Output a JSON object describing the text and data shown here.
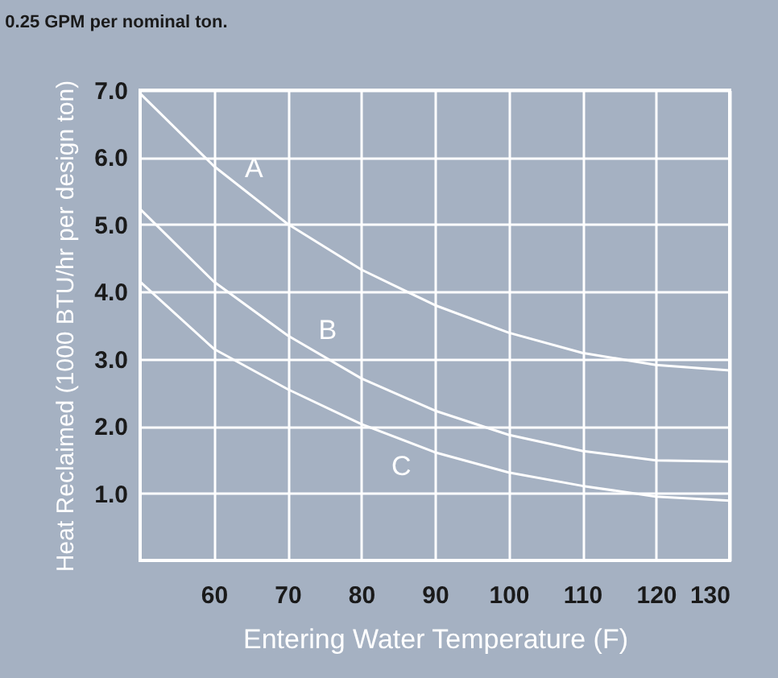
{
  "chart_data": {
    "type": "line",
    "subtitle": "0.25 GPM per nominal ton.",
    "xlabel": "Entering Water Temperature (F)",
    "ylabel": "Heat Reclaimed (1000 BTU/hr per design ton)",
    "xlim": [
      50,
      130
    ],
    "xticks": [
      60,
      70,
      80,
      90,
      100,
      110,
      120,
      130
    ],
    "ylim": [
      0,
      7
    ],
    "yticks": [
      {
        "value": 1,
        "label": "1.0"
      },
      {
        "value": 2,
        "label": "2.0"
      },
      {
        "value": 3,
        "label": "3.0"
      },
      {
        "value": 4,
        "label": "4.0"
      },
      {
        "value": 5,
        "label": "5.0"
      },
      {
        "value": 6,
        "label": "6.0"
      },
      {
        "value": 7,
        "label": "7.0"
      }
    ],
    "grid": true,
    "legend": false,
    "marker": "none",
    "line_style": "solid",
    "x": [
      50,
      60,
      70,
      80,
      90,
      100,
      110,
      120,
      130
    ],
    "series": [
      {
        "name": "A",
        "color": "#ffffff",
        "values": [
          6.95,
          5.87,
          5.01,
          4.33,
          3.8,
          3.39,
          3.09,
          2.91,
          2.83
        ]
      },
      {
        "name": "B",
        "color": "#ffffff",
        "values": [
          5.23,
          4.15,
          3.35,
          2.71,
          2.23,
          1.87,
          1.63,
          1.49,
          1.47
        ]
      },
      {
        "name": "C",
        "color": "#ffffff",
        "values": [
          4.15,
          3.15,
          2.55,
          2.03,
          1.61,
          1.31,
          1.11,
          0.95,
          0.89
        ]
      }
    ]
  }
}
